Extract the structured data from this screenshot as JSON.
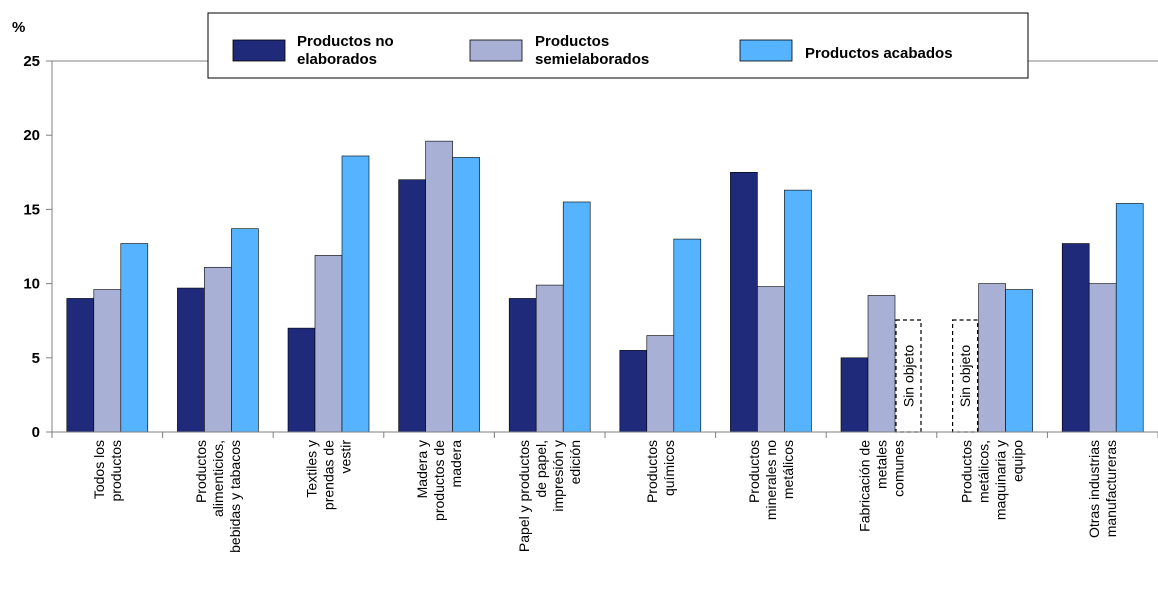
{
  "chart_data": {
    "type": "bar",
    "ylabel": "%",
    "ylim": [
      0,
      25
    ],
    "yticks": [
      0,
      5,
      10,
      15,
      20,
      25
    ],
    "grid": false,
    "legend_position": "top",
    "categories": [
      [
        "Todos los",
        "productos"
      ],
      [
        "Productos",
        "alimenticios,",
        "bebidas y tabacos"
      ],
      [
        "Textiles y",
        "prendas de",
        "vestir"
      ],
      [
        "Madera y",
        "productos de",
        "madera"
      ],
      [
        "Papel y productos",
        "de papel,",
        "impresión y",
        "edición"
      ],
      [
        "Productos",
        "químicos"
      ],
      [
        "Productos",
        "minerales no",
        "metálicos"
      ],
      [
        "Fabricación de",
        "metales",
        "comunes"
      ],
      [
        "Productos",
        "metálicos,",
        "maquinaria y",
        "equipo"
      ],
      [
        "Otras industrias",
        "manufactureras"
      ]
    ],
    "series": [
      {
        "name": [
          "Productos no",
          "elaborados"
        ],
        "color": "#1f2a7a",
        "values": [
          9.0,
          9.7,
          7.0,
          17.0,
          9.0,
          5.5,
          17.5,
          5.0,
          null,
          12.7
        ]
      },
      {
        "name": [
          "Productos",
          "semielaborados"
        ],
        "color": "#a9b0d6",
        "values": [
          9.6,
          11.1,
          11.9,
          19.6,
          9.9,
          6.5,
          9.8,
          9.2,
          10.0,
          10.0
        ]
      },
      {
        "name": [
          "Productos acabados"
        ],
        "color": "#55b3ff",
        "values": [
          12.7,
          13.7,
          18.6,
          18.5,
          15.5,
          13.0,
          16.3,
          null,
          9.6,
          15.4
        ]
      }
    ],
    "annotations": [
      {
        "category_index": 7,
        "series_index": 2,
        "text": "Sin objeto"
      },
      {
        "category_index": 8,
        "series_index": 0,
        "text": "Sin objeto"
      }
    ]
  },
  "colors": {
    "axis": "#808080",
    "bar_border": "#000000"
  }
}
